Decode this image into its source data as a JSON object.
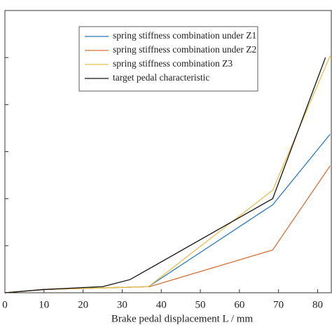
{
  "chart_data": {
    "type": "line",
    "x_label": "Brake pedal displacement  L / mm",
    "xlim": [
      0,
      83.5
    ],
    "xticks": [
      0,
      10,
      20,
      30,
      40,
      50,
      60,
      70,
      80
    ],
    "ylim": [
      0,
      6
    ],
    "yticks": [
      0,
      1,
      2,
      3,
      4,
      5,
      6
    ],
    "show_ytick_labels": false,
    "legend": "upper center",
    "series": [
      {
        "name": "spring stiffness combination under Z1",
        "color": "#2b7bb9",
        "x": [
          0,
          10,
          36.7,
          68.5,
          83.2
        ],
        "values": [
          0,
          0.07,
          0.13,
          1.87,
          3.37
        ]
      },
      {
        "name": "spring stiffness combination under Z2",
        "color": "#d4703a",
        "x": [
          0,
          10,
          37,
          68.5,
          83.2
        ],
        "values": [
          0,
          0.07,
          0.13,
          0.91,
          2.7
        ]
      },
      {
        "name": "spring stiffness combination Z3",
        "color": "#e8c050",
        "x": [
          0,
          10,
          36.7,
          68.5,
          83.2
        ],
        "values": [
          0,
          0.07,
          0.13,
          2.18,
          5.04
        ]
      },
      {
        "name": "target pedal characteristic",
        "color": "#111111",
        "x": [
          0,
          10,
          25,
          32,
          68.5,
          82
        ],
        "values": [
          0,
          0.07,
          0.13,
          0.28,
          2.0,
          5.0
        ]
      }
    ]
  }
}
